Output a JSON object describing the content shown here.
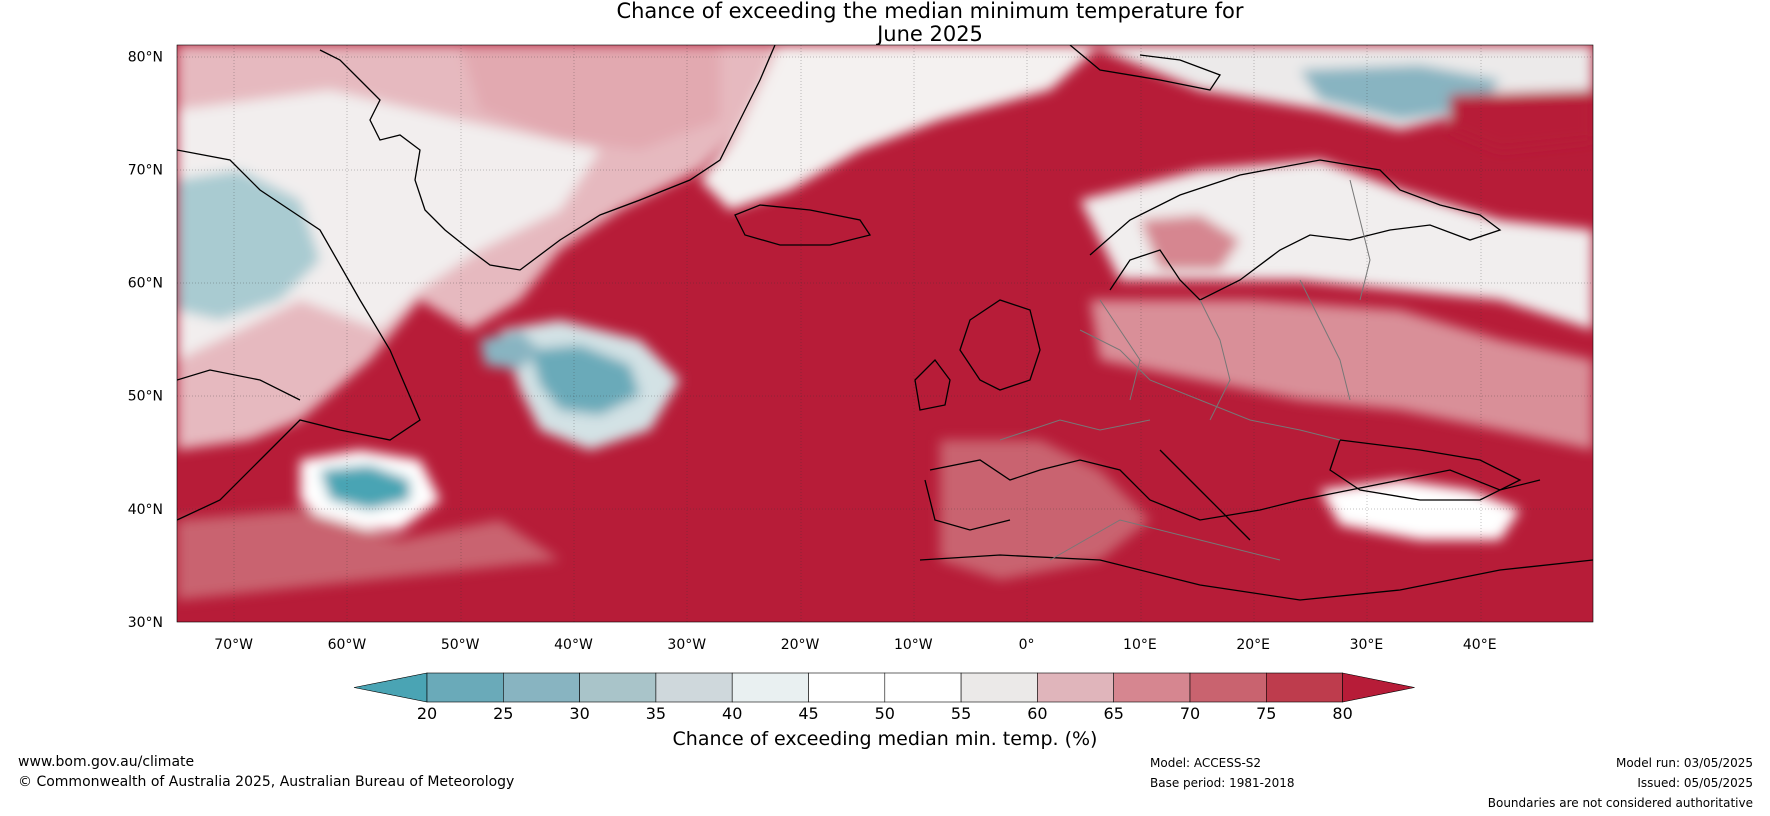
{
  "title": {
    "line1": "Chance of exceeding the median minimum temperature for",
    "line2": "June 2025"
  },
  "map": {
    "lat_labels": [
      "80°N",
      "70°N",
      "60°N",
      "50°N",
      "40°N",
      "30°N"
    ],
    "lon_labels": [
      "70°W",
      "60°W",
      "50°W",
      "40°W",
      "30°W",
      "20°W",
      "10°W",
      "0°",
      "10°E",
      "20°E",
      "30°E",
      "40°E"
    ],
    "lat_range": [
      30,
      81
    ],
    "lon_range": [
      -75,
      50
    ]
  },
  "colorbar": {
    "ticks": [
      "20",
      "25",
      "30",
      "35",
      "40",
      "45",
      "50",
      "55",
      "60",
      "65",
      "70",
      "75",
      "80"
    ],
    "colors": [
      "#4aa4b4",
      "#6aaab9",
      "#88b4c1",
      "#a9c4c9",
      "#cfd8dc",
      "#e9f0f1",
      "#ffffff",
      "#ffffff",
      "#ebe9e8",
      "#e0b5bb",
      "#d68690",
      "#c9636f",
      "#be3c4d",
      "#b71c38"
    ],
    "title": "Chance of exceeding median min. temp. (%)"
  },
  "footer": {
    "website": "www.bom.gov.au/climate",
    "copyright": "© Commonwealth of Australia 2025, Australian Bureau of Meteorology",
    "model": "Model: ACCESS-S2",
    "base_period": "Base period: 1981-2018",
    "model_run": "Model run: 03/05/2025",
    "issued": "Issued: 05/05/2025",
    "boundaries": "Boundaries are not considered authoritative"
  }
}
